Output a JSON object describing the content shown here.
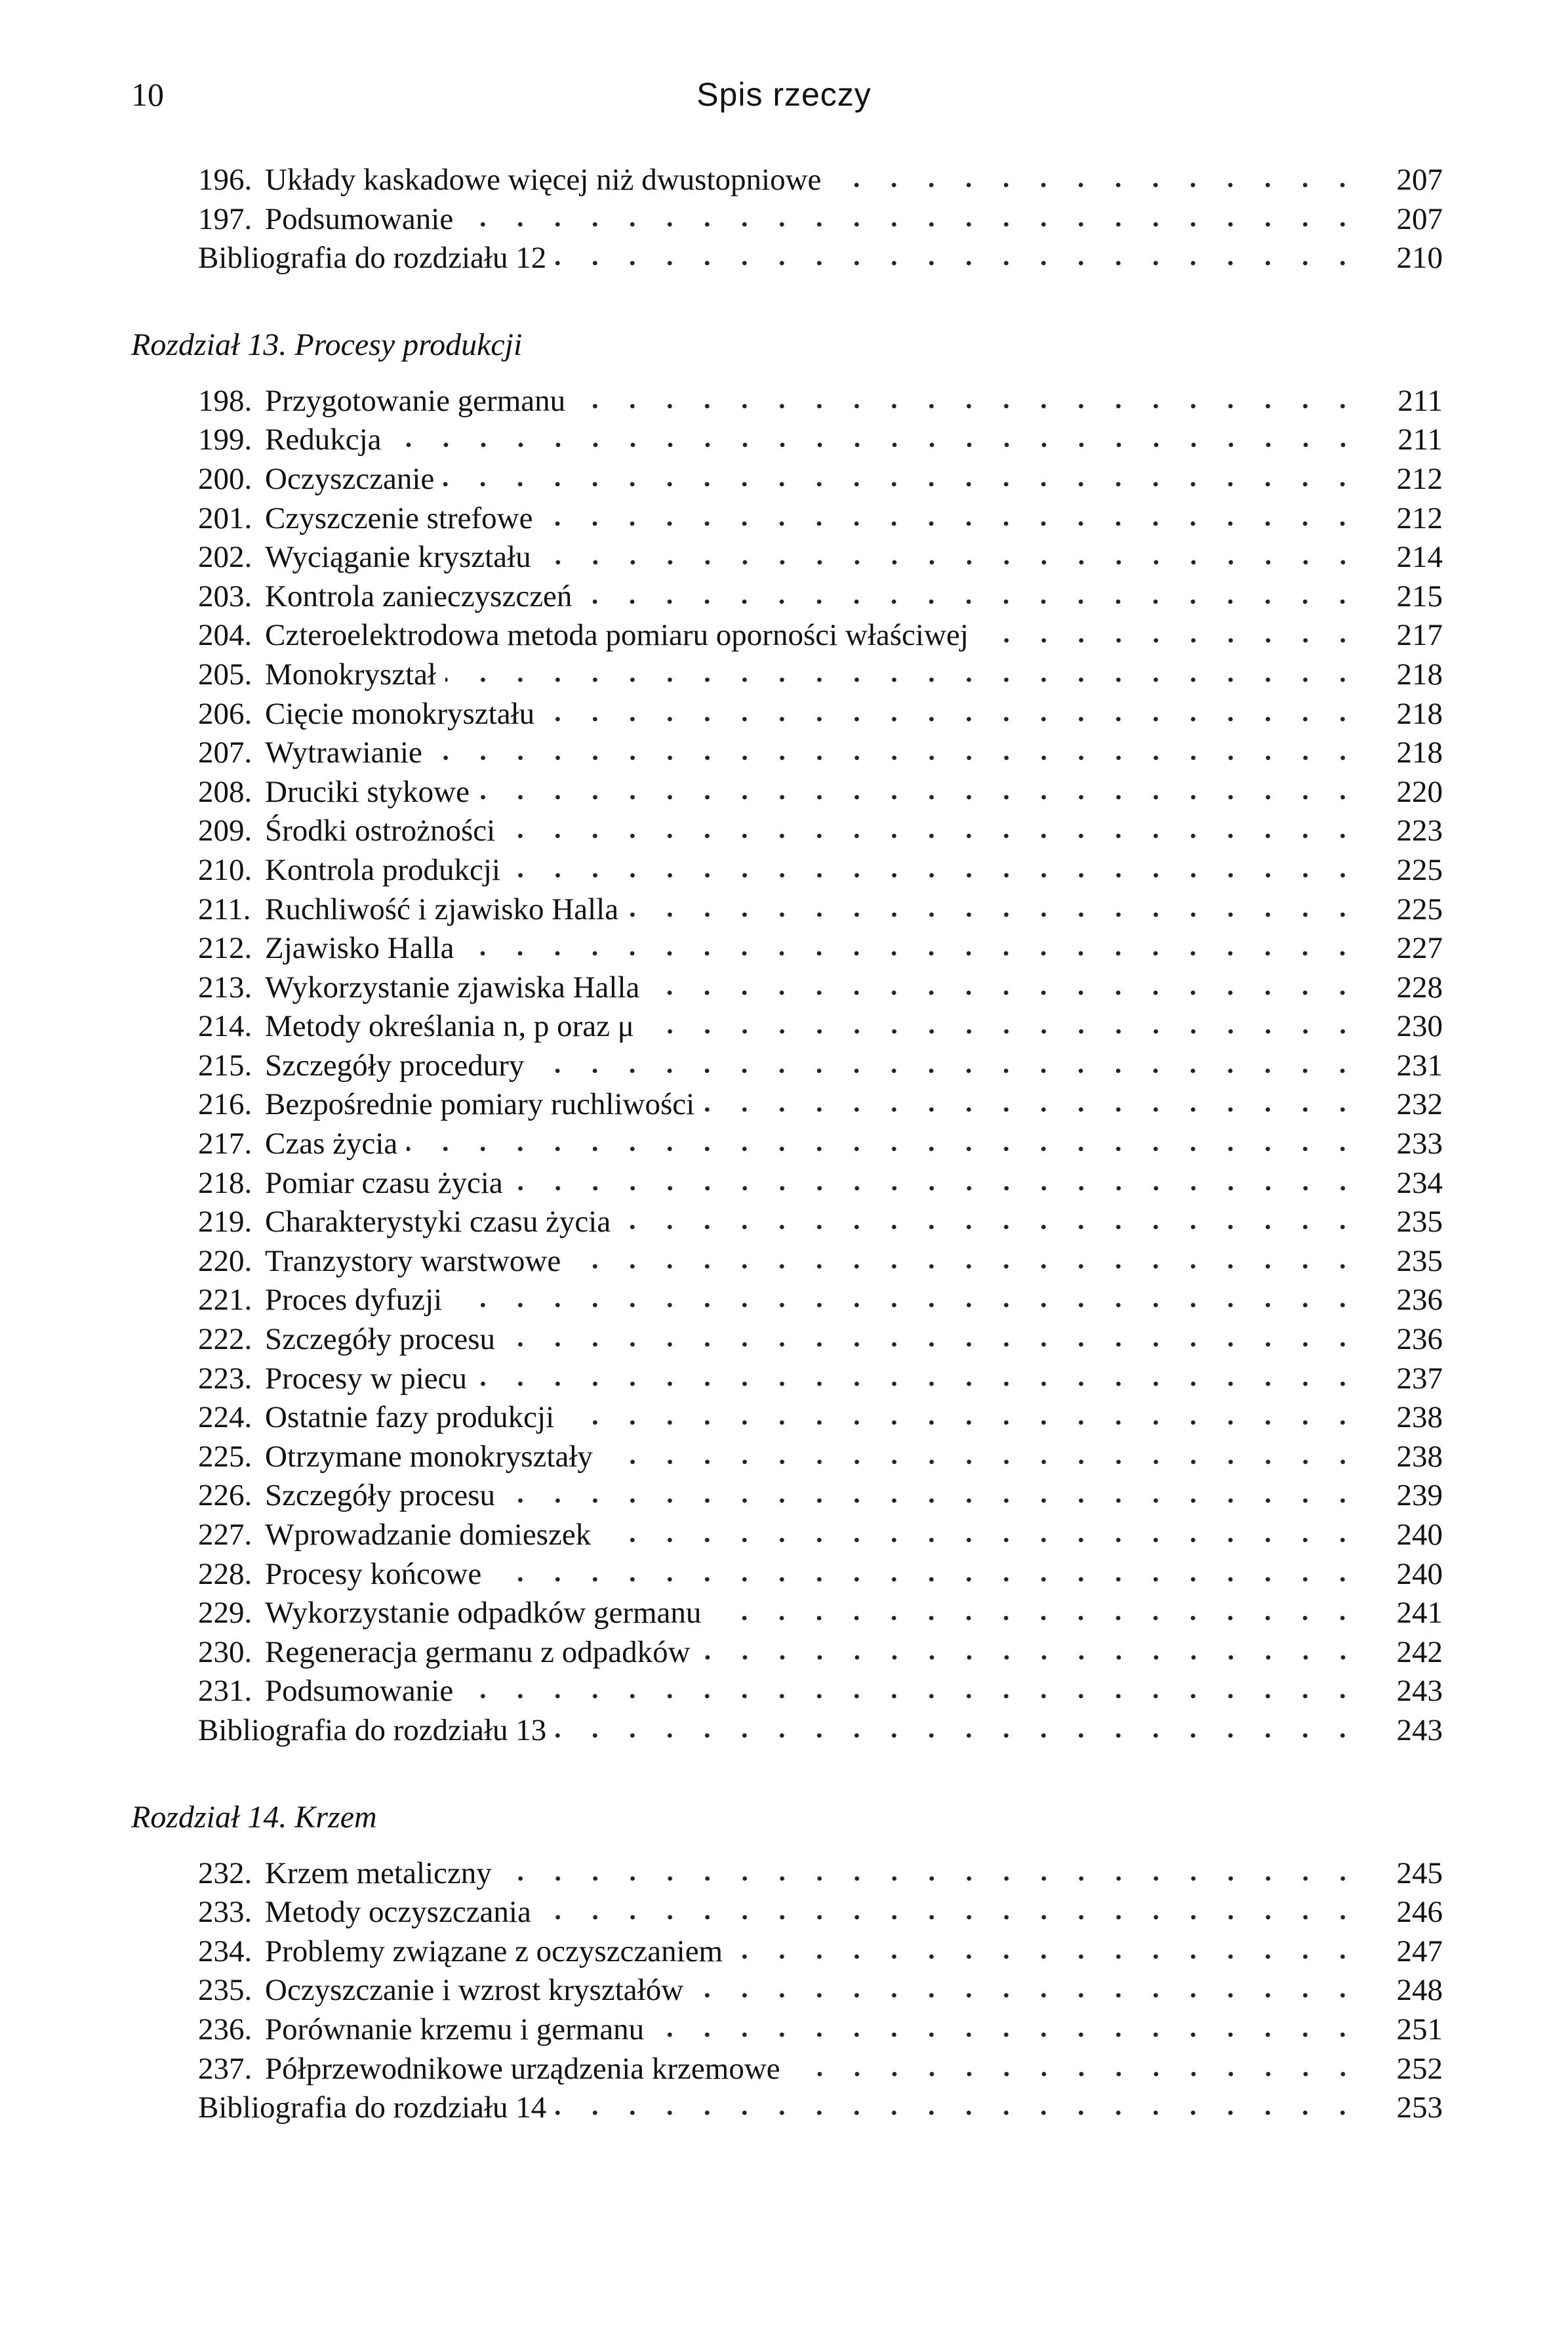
{
  "header": {
    "page_number": "10",
    "running_title": "Spis rzeczy"
  },
  "toc": [
    {
      "entries": [
        {
          "num": "196.",
          "title": "Układy kaskadowe więcej niż dwustopniowe",
          "page": "207"
        },
        {
          "num": "197.",
          "title": "Podsumowanie",
          "page": "207"
        },
        {
          "num": "",
          "title": "Bibliografia do rozdziału 12",
          "page": "210"
        }
      ]
    },
    {
      "chapter": "Rozdział 13. Procesy produkcji",
      "entries": [
        {
          "num": "198.",
          "title": "Przygotowanie germanu",
          "page": "211"
        },
        {
          "num": "199.",
          "title": "Redukcja",
          "page": "211"
        },
        {
          "num": "200.",
          "title": "Oczyszczanie",
          "page": "212"
        },
        {
          "num": "201.",
          "title": "Czyszczenie strefowe",
          "page": "212"
        },
        {
          "num": "202.",
          "title": "Wyciąganie kryształu",
          "page": "214"
        },
        {
          "num": "203.",
          "title": "Kontrola zanieczyszczeń",
          "page": "215"
        },
        {
          "num": "204.",
          "title": "Czteroelektrodowa metoda pomiaru oporności właściwej",
          "page": "217"
        },
        {
          "num": "205.",
          "title": "Monokryształ",
          "page": "218"
        },
        {
          "num": "206.",
          "title": "Cięcie monokryształu",
          "page": "218"
        },
        {
          "num": "207.",
          "title": "Wytrawianie",
          "page": "218"
        },
        {
          "num": "208.",
          "title": "Druciki stykowe",
          "page": "220"
        },
        {
          "num": "209.",
          "title": "Środki ostrożności",
          "page": "223"
        },
        {
          "num": "210.",
          "title": "Kontrola produkcji",
          "page": "225"
        },
        {
          "num": "211.",
          "title": "Ruchliwość i zjawisko Halla",
          "page": "225"
        },
        {
          "num": "212.",
          "title": "Zjawisko Halla",
          "page": "227"
        },
        {
          "num": "213.",
          "title": "Wykorzystanie zjawiska Halla",
          "page": "228"
        },
        {
          "num": "214.",
          "title": "Metody określania n, p oraz μ",
          "page": "230"
        },
        {
          "num": "215.",
          "title": "Szczegóły procedury",
          "page": "231"
        },
        {
          "num": "216.",
          "title": "Bezpośrednie pomiary ruchliwości",
          "page": "232"
        },
        {
          "num": "217.",
          "title": "Czas życia",
          "page": "233"
        },
        {
          "num": "218.",
          "title": "Pomiar czasu życia",
          "page": "234"
        },
        {
          "num": "219.",
          "title": "Charakterystyki czasu życia",
          "page": "235"
        },
        {
          "num": "220.",
          "title": "Tranzystory warstwowe",
          "page": "235"
        },
        {
          "num": "221.",
          "title": "Proces dyfuzji",
          "page": "236"
        },
        {
          "num": "222.",
          "title": "Szczegóły procesu",
          "page": "236"
        },
        {
          "num": "223.",
          "title": "Procesy w piecu",
          "page": "237"
        },
        {
          "num": "224.",
          "title": "Ostatnie fazy produkcji",
          "page": "238"
        },
        {
          "num": "225.",
          "title": "Otrzymane monokryształy",
          "page": "238"
        },
        {
          "num": "226.",
          "title": "Szczegóły procesu",
          "page": "239"
        },
        {
          "num": "227.",
          "title": "Wprowadzanie domieszek",
          "page": "240"
        },
        {
          "num": "228.",
          "title": "Procesy końcowe",
          "page": "240"
        },
        {
          "num": "229.",
          "title": "Wykorzystanie odpadków germanu",
          "page": "241"
        },
        {
          "num": "230.",
          "title": "Regeneracja germanu z odpadków",
          "page": "242"
        },
        {
          "num": "231.",
          "title": "Podsumowanie",
          "page": "243"
        },
        {
          "num": "",
          "title": "Bibliografia do rozdziału 13",
          "page": "243"
        }
      ]
    },
    {
      "chapter": "Rozdział 14. Krzem",
      "entries": [
        {
          "num": "232.",
          "title": "Krzem metaliczny",
          "page": "245"
        },
        {
          "num": "233.",
          "title": "Metody oczyszczania",
          "page": "246"
        },
        {
          "num": "234.",
          "title": "Problemy związane z oczyszczaniem",
          "page": "247"
        },
        {
          "num": "235.",
          "title": "Oczyszczanie i wzrost kryształów",
          "page": "248"
        },
        {
          "num": "236.",
          "title": "Porównanie krzemu i germanu",
          "page": "251"
        },
        {
          "num": "237.",
          "title": "Półprzewodnikowe urządzenia krzemowe",
          "page": "252"
        },
        {
          "num": "",
          "title": "Bibliografia do rozdziału 14",
          "page": "253"
        }
      ]
    }
  ]
}
